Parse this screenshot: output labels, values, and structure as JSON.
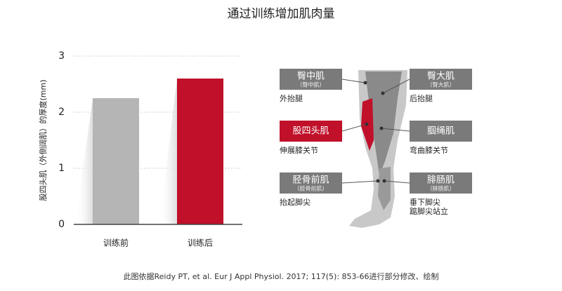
{
  "chart_data": {
    "type": "bar",
    "title": "通过训练增加肌肉量",
    "y_label": "股四头肌（外侧阔肌）的厚度(mm)",
    "categories": [
      "训练前",
      "训练后"
    ],
    "values": [
      2.25,
      2.6
    ],
    "colors": [
      "#b5b5b5",
      "#c0102a"
    ],
    "ylim": [
      0,
      3
    ],
    "yticks": [
      0,
      1,
      2,
      3
    ],
    "grid": true
  },
  "muscles": [
    {
      "name": "臀中肌",
      "sub": "（臀中肌）",
      "desc": [
        "外抬腿"
      ]
    },
    {
      "name": "臀大肌",
      "sub": "（臀大肌）",
      "desc": [
        "后抬腿"
      ]
    },
    {
      "name": "股四头肌",
      "desc": [
        "伸展膝关节"
      ]
    },
    {
      "name": "腘绳肌",
      "desc": [
        "弯曲膝关节"
      ]
    },
    {
      "name": "胫骨前肌",
      "sub": "（胫骨前肌）",
      "desc": [
        "抬起脚尖"
      ]
    },
    {
      "name": "腓肠肌",
      "sub": "（腓肠肌）",
      "desc": [
        "垂下脚尖",
        "踮脚尖站立"
      ]
    }
  ],
  "footnote": "此图依据Reidy PT, et al. Eur J Appl Physiol. 2017; 117(5): 853-66进行部分修改、绘制"
}
